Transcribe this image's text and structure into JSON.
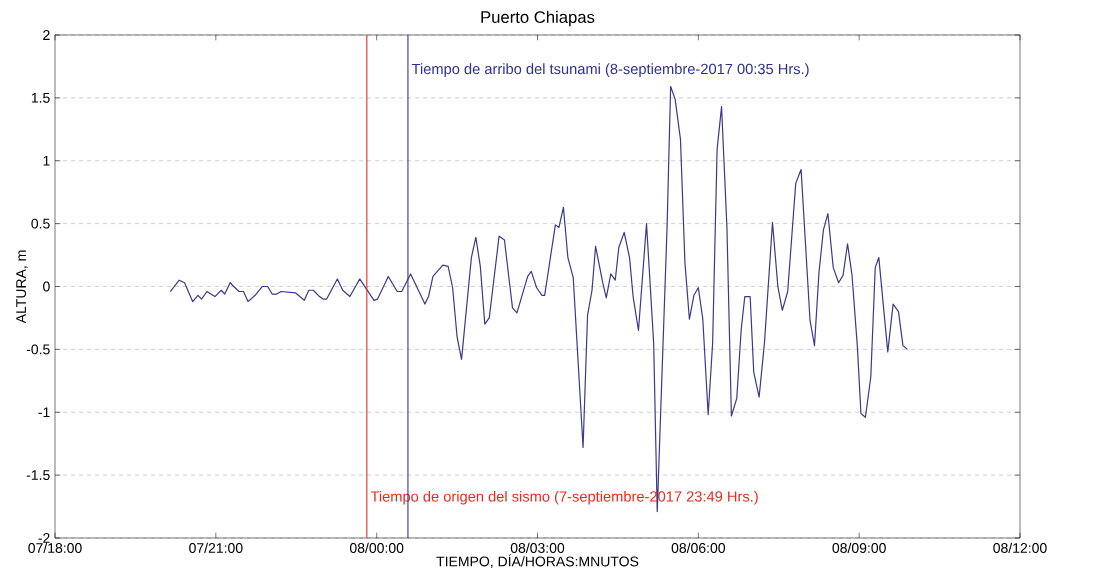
{
  "chart_data": {
    "type": "line",
    "title": "Puerto Chiapas",
    "xlabel": "TIEMPO, DÍA/HORAS:MNUTOS",
    "ylabel": "ALTURA, m",
    "x": [
      "2017-09-07T20:09",
      "2017-09-07T20:19",
      "2017-09-07T20:25",
      "2017-09-07T20:34",
      "2017-09-07T20:40",
      "2017-09-07T20:44",
      "2017-09-07T20:50",
      "2017-09-07T20:59",
      "2017-09-07T21:06",
      "2017-09-07T21:10",
      "2017-09-07T21:16",
      "2017-09-07T21:20",
      "2017-09-07T21:26",
      "2017-09-07T21:31",
      "2017-09-07T21:36",
      "2017-09-07T21:44",
      "2017-09-07T21:52",
      "2017-09-07T21:58",
      "2017-09-07T22:03",
      "2017-09-07T22:08",
      "2017-09-07T22:13",
      "2017-09-07T22:29",
      "2017-09-07T22:39",
      "2017-09-07T22:44",
      "2017-09-07T22:49",
      "2017-09-07T22:56",
      "2017-09-07T23:00",
      "2017-09-07T23:04",
      "2017-09-07T23:16",
      "2017-09-07T23:22",
      "2017-09-07T23:30",
      "2017-09-07T23:41",
      "2017-09-07T23:57",
      "2017-09-08T00:01",
      "2017-09-08T00:13",
      "2017-09-08T00:23",
      "2017-09-08T00:28",
      "2017-09-08T00:38",
      "2017-09-08T00:54",
      "2017-09-08T00:58",
      "2017-09-08T01:03",
      "2017-09-08T01:14",
      "2017-09-08T01:20",
      "2017-09-08T01:25",
      "2017-09-08T01:30",
      "2017-09-08T01:35",
      "2017-09-08T01:46",
      "2017-09-08T01:51",
      "2017-09-08T01:56",
      "2017-09-08T02:01",
      "2017-09-08T02:06",
      "2017-09-08T02:17",
      "2017-09-08T02:23",
      "2017-09-08T02:32",
      "2017-09-08T02:37",
      "2017-09-08T02:49",
      "2017-09-08T02:53",
      "2017-09-08T02:59",
      "2017-09-08T03:05",
      "2017-09-08T03:08",
      "2017-09-08T03:20",
      "2017-09-08T03:24",
      "2017-09-08T03:29",
      "2017-09-08T03:34",
      "2017-09-08T03:40",
      "2017-09-08T03:51",
      "2017-09-08T03:56",
      "2017-09-08T04:01",
      "2017-09-08T04:05",
      "2017-09-08T04:13",
      "2017-09-08T04:17",
      "2017-09-08T04:22",
      "2017-09-08T04:27",
      "2017-09-08T04:31",
      "2017-09-08T04:37",
      "2017-09-08T04:43",
      "2017-09-08T04:47",
      "2017-09-08T04:53",
      "2017-09-08T05:02",
      "2017-09-08T05:10",
      "2017-09-08T05:14",
      "2017-09-08T05:25",
      "2017-09-08T05:29",
      "2017-09-08T05:34",
      "2017-09-08T05:40",
      "2017-09-08T05:45",
      "2017-09-08T05:50",
      "2017-09-08T05:55",
      "2017-09-08T06:00",
      "2017-09-08T06:05",
      "2017-09-08T06:11",
      "2017-09-08T06:16",
      "2017-09-08T06:21",
      "2017-09-08T06:26",
      "2017-09-08T06:32",
      "2017-09-08T06:37",
      "2017-09-08T06:43",
      "2017-09-08T06:48",
      "2017-09-08T06:52",
      "2017-09-08T06:58",
      "2017-09-08T07:02",
      "2017-09-08T07:08",
      "2017-09-08T07:14",
      "2017-09-08T07:23",
      "2017-09-08T07:29",
      "2017-09-08T07:34",
      "2017-09-08T07:40",
      "2017-09-08T07:49",
      "2017-09-08T07:55",
      "2017-09-08T07:59",
      "2017-09-08T08:05",
      "2017-09-08T08:10",
      "2017-09-08T08:15",
      "2017-09-08T08:20",
      "2017-09-08T08:25",
      "2017-09-08T08:31",
      "2017-09-08T08:37",
      "2017-09-08T08:42",
      "2017-09-08T08:47",
      "2017-09-08T08:52",
      "2017-09-08T08:58",
      "2017-09-08T09:02",
      "2017-09-08T09:07",
      "2017-09-08T09:13",
      "2017-09-08T09:18",
      "2017-09-08T09:22",
      "2017-09-08T09:32",
      "2017-09-08T09:38",
      "2017-09-08T09:44",
      "2017-09-08T09:49",
      "2017-09-08T09:54"
    ],
    "series": [
      {
        "color": "#3a3a8c",
        "values": [
          -0.04,
          0.05,
          0.03,
          -0.12,
          -0.07,
          -0.1,
          -0.04,
          -0.08,
          -0.03,
          -0.06,
          0.03,
          0.0,
          -0.04,
          -0.04,
          -0.12,
          -0.07,
          0.0,
          0.0,
          -0.06,
          -0.06,
          -0.04,
          -0.05,
          -0.11,
          -0.03,
          -0.03,
          -0.08,
          -0.1,
          -0.1,
          0.06,
          -0.03,
          -0.08,
          0.06,
          -0.11,
          -0.1,
          0.08,
          -0.04,
          -0.04,
          0.1,
          -0.14,
          -0.08,
          0.08,
          0.17,
          0.16,
          -0.01,
          -0.4,
          -0.58,
          0.23,
          0.39,
          0.16,
          -0.3,
          -0.25,
          0.4,
          0.37,
          -0.17,
          -0.21,
          0.08,
          0.12,
          -0.01,
          -0.07,
          -0.07,
          0.49,
          0.47,
          0.63,
          0.23,
          0.07,
          -1.28,
          -0.23,
          -0.03,
          0.32,
          0.03,
          -0.09,
          0.1,
          0.05,
          0.31,
          0.43,
          0.23,
          -0.08,
          -0.35,
          0.5,
          -0.45,
          -1.79,
          0.47,
          1.59,
          1.49,
          1.17,
          0.19,
          -0.26,
          -0.07,
          -0.01,
          -0.26,
          -1.02,
          -0.45,
          1.09,
          1.43,
          0.47,
          -1.03,
          -0.89,
          -0.34,
          -0.08,
          -0.08,
          -0.68,
          -0.88,
          -0.45,
          0.51,
          0.0,
          -0.19,
          -0.04,
          0.82,
          0.93,
          0.45,
          -0.27,
          -0.47,
          0.11,
          0.45,
          0.58,
          0.15,
          0.03,
          0.09,
          0.34,
          0.09,
          -0.48,
          -1.01,
          -1.04,
          -0.72,
          0.15,
          0.23,
          -0.52,
          -0.14,
          -0.2,
          -0.47,
          -0.5
        ]
      }
    ],
    "xlim": [
      "2017-09-07T18:00",
      "2017-09-08T12:00"
    ],
    "xticks": [
      {
        "value": "2017-09-07T18:00",
        "label": "07/18:00"
      },
      {
        "value": "2017-09-07T21:00",
        "label": "07/21:00"
      },
      {
        "value": "2017-09-08T00:00",
        "label": "08/00:00"
      },
      {
        "value": "2017-09-08T03:00",
        "label": "08/03:00"
      },
      {
        "value": "2017-09-08T06:00",
        "label": "08/06:00"
      },
      {
        "value": "2017-09-08T09:00",
        "label": "08/09:00"
      },
      {
        "value": "2017-09-08T12:00",
        "label": "08/12:00"
      }
    ],
    "ylim": [
      -2,
      2
    ],
    "yticks": [
      -2,
      -1.5,
      -1,
      -0.5,
      0,
      0.5,
      1,
      1.5,
      2
    ],
    "grid": "y",
    "ref_lines": [
      {
        "axis": "x",
        "value": "2017-09-07T23:49",
        "label": "Tiempo de origen del sismo (7-septiembre-2017 23:49 Hrs.)",
        "color": "#e8291c"
      },
      {
        "axis": "x",
        "value": "2017-09-08T00:35",
        "label": "Tiempo de arribo del tsunami (8-septiembre-2017 00:35 Hrs.)",
        "color": "#2e3192"
      }
    ]
  }
}
